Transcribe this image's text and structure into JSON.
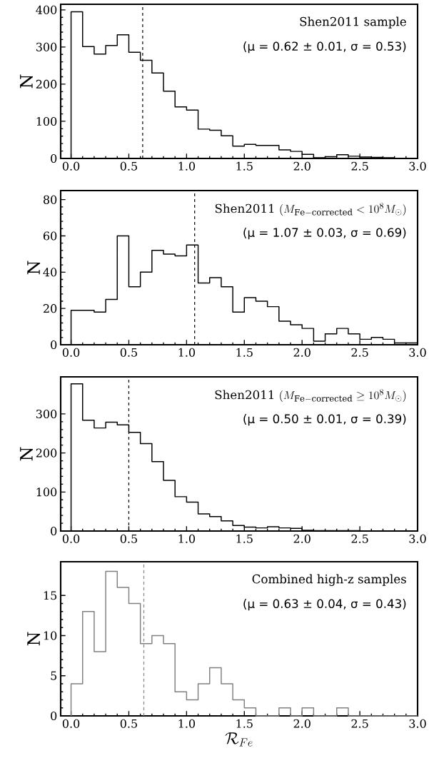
{
  "chart_data": [
    {
      "type": "histogram",
      "bins": [
        0.0,
        0.1,
        0.2,
        0.3,
        0.4,
        0.5,
        0.6,
        0.7,
        0.8,
        0.9,
        1.0,
        1.1,
        1.2,
        1.3,
        1.4,
        1.5,
        1.6,
        1.7,
        1.8,
        1.9,
        2.0,
        2.1,
        2.2,
        2.3,
        2.4,
        2.5,
        2.6,
        2.7,
        2.8,
        2.9,
        3.0
      ],
      "values": [
        395,
        301,
        281,
        304,
        333,
        286,
        264,
        230,
        181,
        139,
        130,
        79,
        76,
        61,
        33,
        38,
        35,
        35,
        23,
        19,
        11,
        2,
        5,
        10,
        6,
        4,
        3,
        2,
        0,
        0
      ],
      "color": "#000000",
      "xlim": [
        -0.09,
        3.0
      ],
      "ylim": [
        0,
        415
      ],
      "xticks": [
        {
          "value": 0,
          "label": "0.0"
        },
        0.5,
        {
          "value": 1,
          "label": "1.0"
        },
        1.5,
        {
          "value": 2,
          "label": "2.0"
        },
        2.5,
        {
          "value": 3,
          "label": "3.0"
        }
      ],
      "yticks": [
        0,
        100,
        200,
        300,
        400
      ],
      "ylabel": "N",
      "annotations": [
        "\\text{Shen2011 sample}",
        "(μ = 0.62 ± 0.01, σ = 0.53)"
      ],
      "ref_lines": [
        {
          "axis": "x",
          "value": 0.62,
          "color": "#000000",
          "line_style": "dashed"
        }
      ]
    },
    {
      "type": "histogram",
      "bins": [
        0.0,
        0.1,
        0.2,
        0.3,
        0.4,
        0.5,
        0.6,
        0.7,
        0.8,
        0.9,
        1.0,
        1.1,
        1.2,
        1.3,
        1.4,
        1.5,
        1.6,
        1.7,
        1.8,
        1.9,
        2.0,
        2.1,
        2.2,
        2.3,
        2.4,
        2.5,
        2.6,
        2.7,
        2.8,
        2.9,
        3.0
      ],
      "values": [
        19,
        19,
        18,
        25,
        60,
        32,
        40,
        52,
        50,
        49,
        55,
        34,
        37,
        32,
        18,
        26,
        24,
        21,
        13,
        11,
        9,
        2,
        6,
        9,
        6,
        3,
        4,
        3,
        1,
        1
      ],
      "color": "#000000",
      "xlim": [
        -0.09,
        3.0
      ],
      "ylim": [
        0,
        85
      ],
      "xticks": [
        {
          "value": 0,
          "label": "0.0"
        },
        0.5,
        {
          "value": 1,
          "label": "1.0"
        },
        1.5,
        {
          "value": 2,
          "label": "2.0"
        },
        2.5,
        {
          "value": 3,
          "label": "3.0"
        }
      ],
      "yticks": [
        0,
        20,
        40,
        60,
        80
      ],
      "ylabel": "N",
      "annotations": [
        "\\text{Shen2011 }(M_{\\mathrm{Fe-corrected}} < 10^{8} M_{\\odot})",
        "(μ = 1.07 ± 0.03, σ = 0.69)"
      ],
      "ref_lines": [
        {
          "axis": "x",
          "value": 1.07,
          "color": "#000000",
          "line_style": "dashed"
        }
      ]
    },
    {
      "type": "histogram",
      "bins": [
        0.0,
        0.1,
        0.2,
        0.3,
        0.4,
        0.5,
        0.6,
        0.7,
        0.8,
        0.9,
        1.0,
        1.1,
        1.2,
        1.3,
        1.4,
        1.5,
        1.6,
        1.7,
        1.8,
        1.9,
        2.0,
        2.1,
        2.2,
        2.3,
        2.4,
        2.5,
        2.6,
        2.7,
        2.8,
        2.9,
        3.0
      ],
      "values": [
        377,
        284,
        264,
        279,
        272,
        253,
        224,
        178,
        130,
        88,
        74,
        44,
        37,
        26,
        14,
        10,
        8,
        11,
        8,
        7,
        2,
        1,
        1,
        1,
        1,
        0,
        0,
        0,
        0,
        0
      ],
      "color": "#000000",
      "xlim": [
        -0.09,
        3.0
      ],
      "ylim": [
        0,
        395
      ],
      "xticks": [
        {
          "value": 0,
          "label": "0.0"
        },
        0.5,
        {
          "value": 1,
          "label": "1.0"
        },
        1.5,
        {
          "value": 2,
          "label": "2.0"
        },
        2.5,
        {
          "value": 3,
          "label": "3.0"
        }
      ],
      "yticks": [
        0,
        100,
        200,
        300
      ],
      "ylabel": "N",
      "annotations": [
        "\\text{Shen2011 }(M_{\\mathrm{Fe-corrected}} \\geq 10^{8} M_{\\odot})",
        "(μ = 0.50 ± 0.01, σ = 0.39)"
      ],
      "ref_lines": [
        {
          "axis": "x",
          "value": 0.5,
          "color": "#000000",
          "line_style": "dashed"
        }
      ]
    },
    {
      "type": "histogram",
      "bins": [
        0.0,
        0.1,
        0.2,
        0.3,
        0.4,
        0.5,
        0.6,
        0.7,
        0.8,
        0.9,
        1.0,
        1.1,
        1.2,
        1.3,
        1.4,
        1.5,
        1.6,
        1.7,
        1.8,
        1.9,
        2.0,
        2.1,
        2.2,
        2.3,
        2.4,
        2.5,
        2.6,
        2.7,
        2.8,
        2.9,
        3.0
      ],
      "values": [
        4,
        13,
        8,
        18,
        16,
        14,
        9,
        10,
        9,
        3,
        2,
        4,
        6,
        4,
        2,
        1,
        0,
        0,
        1,
        0,
        1,
        0,
        0,
        1,
        0,
        0,
        0,
        0,
        0,
        0
      ],
      "color": "#808080",
      "xlim": [
        -0.09,
        3.0
      ],
      "ylim": [
        0,
        19.2
      ],
      "xticks": [
        {
          "value": 0,
          "label": "0.0"
        },
        0.5,
        {
          "value": 1,
          "label": "1.0"
        },
        1.5,
        {
          "value": 2,
          "label": "2.0"
        },
        2.5,
        {
          "value": 3,
          "label": "3.0"
        }
      ],
      "yticks": [
        0,
        5,
        10,
        15
      ],
      "xlabel": "\\mathcal{R}_{Fe}",
      "ylabel": "N",
      "annotations": [
        "\\text{Combined high-z samples}",
        "(μ = 0.63 ± 0.04, σ = 0.43)"
      ],
      "ref_lines": [
        {
          "axis": "x",
          "value": 0.63,
          "color": "#808080",
          "line_style": "dashed"
        }
      ]
    }
  ]
}
